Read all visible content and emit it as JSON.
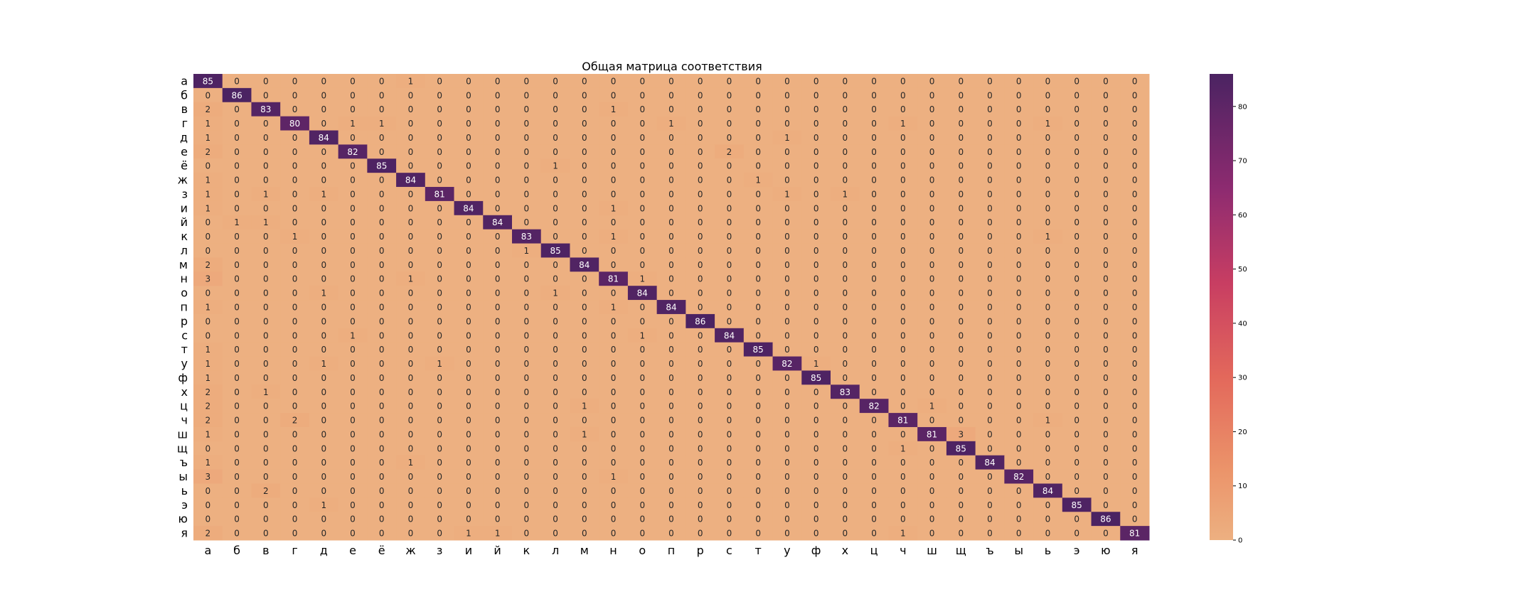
{
  "chart_data": {
    "type": "heatmap",
    "title": "Общая матрица соответствия",
    "xlabel": "",
    "ylabel": "",
    "labels": [
      "а",
      "б",
      "в",
      "г",
      "д",
      "е",
      "ё",
      "ж",
      "з",
      "и",
      "й",
      "к",
      "л",
      "м",
      "н",
      "о",
      "п",
      "р",
      "с",
      "т",
      "у",
      "ф",
      "х",
      "ц",
      "ч",
      "ш",
      "щ",
      "ъ",
      "ы",
      "ь",
      "э",
      "ю",
      "я"
    ],
    "matrix": [
      [
        85,
        0,
        0,
        0,
        0,
        0,
        0,
        1,
        0,
        0,
        0,
        0,
        0,
        0,
        0,
        0,
        0,
        0,
        0,
        0,
        0,
        0,
        0,
        0,
        0,
        0,
        0,
        0,
        0,
        0,
        0,
        0,
        0
      ],
      [
        0,
        86,
        0,
        0,
        0,
        0,
        0,
        0,
        0,
        0,
        0,
        0,
        0,
        0,
        0,
        0,
        0,
        0,
        0,
        0,
        0,
        0,
        0,
        0,
        0,
        0,
        0,
        0,
        0,
        0,
        0,
        0,
        0
      ],
      [
        2,
        0,
        83,
        0,
        0,
        0,
        0,
        0,
        0,
        0,
        0,
        0,
        0,
        0,
        1,
        0,
        0,
        0,
        0,
        0,
        0,
        0,
        0,
        0,
        0,
        0,
        0,
        0,
        0,
        0,
        0,
        0,
        0
      ],
      [
        1,
        0,
        0,
        80,
        0,
        1,
        1,
        0,
        0,
        0,
        0,
        0,
        0,
        0,
        0,
        0,
        1,
        0,
        0,
        0,
        0,
        0,
        0,
        0,
        1,
        0,
        0,
        0,
        0,
        1,
        0,
        0,
        0
      ],
      [
        1,
        0,
        0,
        0,
        84,
        0,
        0,
        0,
        0,
        0,
        0,
        0,
        0,
        0,
        0,
        0,
        0,
        0,
        0,
        0,
        1,
        0,
        0,
        0,
        0,
        0,
        0,
        0,
        0,
        0,
        0,
        0,
        0
      ],
      [
        2,
        0,
        0,
        0,
        0,
        82,
        0,
        0,
        0,
        0,
        0,
        0,
        0,
        0,
        0,
        0,
        0,
        0,
        2,
        0,
        0,
        0,
        0,
        0,
        0,
        0,
        0,
        0,
        0,
        0,
        0,
        0,
        0
      ],
      [
        0,
        0,
        0,
        0,
        0,
        0,
        85,
        0,
        0,
        0,
        0,
        0,
        1,
        0,
        0,
        0,
        0,
        0,
        0,
        0,
        0,
        0,
        0,
        0,
        0,
        0,
        0,
        0,
        0,
        0,
        0,
        0,
        0
      ],
      [
        1,
        0,
        0,
        0,
        0,
        0,
        0,
        84,
        0,
        0,
        0,
        0,
        0,
        0,
        0,
        0,
        0,
        0,
        0,
        1,
        0,
        0,
        0,
        0,
        0,
        0,
        0,
        0,
        0,
        0,
        0,
        0,
        0
      ],
      [
        1,
        0,
        1,
        0,
        1,
        0,
        0,
        0,
        81,
        0,
        0,
        0,
        0,
        0,
        0,
        0,
        0,
        0,
        0,
        0,
        1,
        0,
        1,
        0,
        0,
        0,
        0,
        0,
        0,
        0,
        0,
        0,
        0
      ],
      [
        1,
        0,
        0,
        0,
        0,
        0,
        0,
        0,
        0,
        84,
        0,
        0,
        0,
        0,
        1,
        0,
        0,
        0,
        0,
        0,
        0,
        0,
        0,
        0,
        0,
        0,
        0,
        0,
        0,
        0,
        0,
        0,
        0
      ],
      [
        0,
        1,
        1,
        0,
        0,
        0,
        0,
        0,
        0,
        0,
        84,
        0,
        0,
        0,
        0,
        0,
        0,
        0,
        0,
        0,
        0,
        0,
        0,
        0,
        0,
        0,
        0,
        0,
        0,
        0,
        0,
        0,
        0
      ],
      [
        0,
        0,
        0,
        1,
        0,
        0,
        0,
        0,
        0,
        0,
        0,
        83,
        0,
        0,
        1,
        0,
        0,
        0,
        0,
        0,
        0,
        0,
        0,
        0,
        0,
        0,
        0,
        0,
        0,
        1,
        0,
        0,
        0
      ],
      [
        0,
        0,
        0,
        0,
        0,
        0,
        0,
        0,
        0,
        0,
        0,
        1,
        85,
        0,
        0,
        0,
        0,
        0,
        0,
        0,
        0,
        0,
        0,
        0,
        0,
        0,
        0,
        0,
        0,
        0,
        0,
        0,
        0
      ],
      [
        2,
        0,
        0,
        0,
        0,
        0,
        0,
        0,
        0,
        0,
        0,
        0,
        0,
        84,
        0,
        0,
        0,
        0,
        0,
        0,
        0,
        0,
        0,
        0,
        0,
        0,
        0,
        0,
        0,
        0,
        0,
        0,
        0
      ],
      [
        3,
        0,
        0,
        0,
        0,
        0,
        0,
        1,
        0,
        0,
        0,
        0,
        0,
        0,
        81,
        1,
        0,
        0,
        0,
        0,
        0,
        0,
        0,
        0,
        0,
        0,
        0,
        0,
        0,
        0,
        0,
        0,
        0
      ],
      [
        0,
        0,
        0,
        0,
        1,
        0,
        0,
        0,
        0,
        0,
        0,
        0,
        1,
        0,
        0,
        84,
        0,
        0,
        0,
        0,
        0,
        0,
        0,
        0,
        0,
        0,
        0,
        0,
        0,
        0,
        0,
        0,
        0
      ],
      [
        1,
        0,
        0,
        0,
        0,
        0,
        0,
        0,
        0,
        0,
        0,
        0,
        0,
        0,
        1,
        0,
        84,
        0,
        0,
        0,
        0,
        0,
        0,
        0,
        0,
        0,
        0,
        0,
        0,
        0,
        0,
        0,
        0
      ],
      [
        0,
        0,
        0,
        0,
        0,
        0,
        0,
        0,
        0,
        0,
        0,
        0,
        0,
        0,
        0,
        0,
        0,
        86,
        0,
        0,
        0,
        0,
        0,
        0,
        0,
        0,
        0,
        0,
        0,
        0,
        0,
        0,
        0
      ],
      [
        0,
        0,
        0,
        0,
        0,
        1,
        0,
        0,
        0,
        0,
        0,
        0,
        0,
        0,
        0,
        1,
        0,
        0,
        84,
        0,
        0,
        0,
        0,
        0,
        0,
        0,
        0,
        0,
        0,
        0,
        0,
        0,
        0
      ],
      [
        1,
        0,
        0,
        0,
        0,
        0,
        0,
        0,
        0,
        0,
        0,
        0,
        0,
        0,
        0,
        0,
        0,
        0,
        0,
        85,
        0,
        0,
        0,
        0,
        0,
        0,
        0,
        0,
        0,
        0,
        0,
        0,
        0
      ],
      [
        1,
        0,
        0,
        0,
        1,
        0,
        0,
        0,
        1,
        0,
        0,
        0,
        0,
        0,
        0,
        0,
        0,
        0,
        0,
        0,
        82,
        1,
        0,
        0,
        0,
        0,
        0,
        0,
        0,
        0,
        0,
        0,
        0
      ],
      [
        1,
        0,
        0,
        0,
        0,
        0,
        0,
        0,
        0,
        0,
        0,
        0,
        0,
        0,
        0,
        0,
        0,
        0,
        0,
        0,
        0,
        85,
        0,
        0,
        0,
        0,
        0,
        0,
        0,
        0,
        0,
        0,
        0
      ],
      [
        2,
        0,
        1,
        0,
        0,
        0,
        0,
        0,
        0,
        0,
        0,
        0,
        0,
        0,
        0,
        0,
        0,
        0,
        0,
        0,
        0,
        0,
        83,
        0,
        0,
        0,
        0,
        0,
        0,
        0,
        0,
        0,
        0
      ],
      [
        2,
        0,
        0,
        0,
        0,
        0,
        0,
        0,
        0,
        0,
        0,
        0,
        0,
        1,
        0,
        0,
        0,
        0,
        0,
        0,
        0,
        0,
        0,
        82,
        0,
        1,
        0,
        0,
        0,
        0,
        0,
        0,
        0
      ],
      [
        2,
        0,
        0,
        2,
        0,
        0,
        0,
        0,
        0,
        0,
        0,
        0,
        0,
        0,
        0,
        0,
        0,
        0,
        0,
        0,
        0,
        0,
        0,
        0,
        81,
        0,
        0,
        0,
        0,
        1,
        0,
        0,
        0
      ],
      [
        1,
        0,
        0,
        0,
        0,
        0,
        0,
        0,
        0,
        0,
        0,
        0,
        0,
        1,
        0,
        0,
        0,
        0,
        0,
        0,
        0,
        0,
        0,
        0,
        0,
        81,
        3,
        0,
        0,
        0,
        0,
        0,
        0
      ],
      [
        0,
        0,
        0,
        0,
        0,
        0,
        0,
        0,
        0,
        0,
        0,
        0,
        0,
        0,
        0,
        0,
        0,
        0,
        0,
        0,
        0,
        0,
        0,
        0,
        1,
        0,
        85,
        0,
        0,
        0,
        0,
        0,
        0
      ],
      [
        1,
        0,
        0,
        0,
        0,
        0,
        0,
        1,
        0,
        0,
        0,
        0,
        0,
        0,
        0,
        0,
        0,
        0,
        0,
        0,
        0,
        0,
        0,
        0,
        0,
        0,
        0,
        84,
        0,
        0,
        0,
        0,
        0
      ],
      [
        3,
        0,
        0,
        0,
        0,
        0,
        0,
        0,
        0,
        0,
        0,
        0,
        0,
        0,
        1,
        0,
        0,
        0,
        0,
        0,
        0,
        0,
        0,
        0,
        0,
        0,
        0,
        0,
        82,
        0,
        0,
        0,
        0
      ],
      [
        0,
        0,
        2,
        0,
        0,
        0,
        0,
        0,
        0,
        0,
        0,
        0,
        0,
        0,
        0,
        0,
        0,
        0,
        0,
        0,
        0,
        0,
        0,
        0,
        0,
        0,
        0,
        0,
        0,
        84,
        0,
        0,
        0
      ],
      [
        0,
        0,
        0,
        0,
        1,
        0,
        0,
        0,
        0,
        0,
        0,
        0,
        0,
        0,
        0,
        0,
        0,
        0,
        0,
        0,
        0,
        0,
        0,
        0,
        0,
        0,
        0,
        0,
        0,
        0,
        85,
        0,
        0
      ],
      [
        0,
        0,
        0,
        0,
        0,
        0,
        0,
        0,
        0,
        0,
        0,
        0,
        0,
        0,
        0,
        0,
        0,
        0,
        0,
        0,
        0,
        0,
        0,
        0,
        0,
        0,
        0,
        0,
        0,
        0,
        0,
        86,
        0
      ],
      [
        2,
        0,
        0,
        0,
        0,
        0,
        0,
        0,
        0,
        1,
        1,
        0,
        0,
        0,
        0,
        0,
        0,
        0,
        0,
        0,
        0,
        0,
        0,
        0,
        1,
        0,
        0,
        0,
        0,
        0,
        0,
        0,
        81
      ]
    ],
    "color_range": [
      0,
      86
    ],
    "colormap": "flare",
    "colorbar_ticks": [
      0,
      10,
      20,
      30,
      40,
      50,
      60,
      70,
      80
    ],
    "colors": {
      "low": "#edb081",
      "high": "#4b2362",
      "text_on_dark": "#ffffff",
      "text_on_light": "#262626"
    }
  }
}
